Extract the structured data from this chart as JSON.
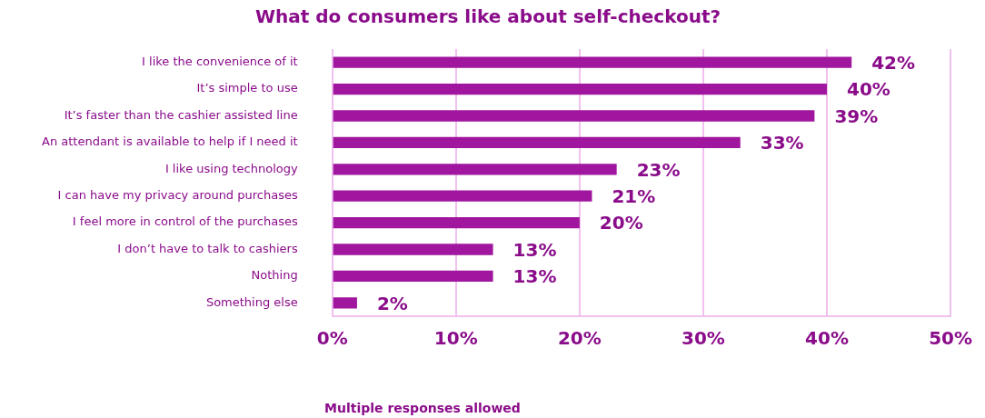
{
  "chart_data": {
    "type": "bar",
    "orientation": "horizontal",
    "title": "What do consumers like about self-checkout?",
    "categories": [
      "I like the convenience of it",
      "It’s simple to use",
      "It’s faster than the cashier assisted line",
      "An attendant is available to help if I need it",
      "I like using technology",
      "I can have my privacy around purchases",
      "I feel more in control of the purchases",
      "I don’t have to talk to cashiers",
      "Nothing",
      "Something else"
    ],
    "values": [
      42,
      40,
      39,
      33,
      23,
      21,
      20,
      13,
      13,
      2
    ],
    "value_labels": [
      "42%",
      "40%",
      "39%",
      "33%",
      "23%",
      "21%",
      "20%",
      "13%",
      "13%",
      "2%"
    ],
    "color": "#a0169e",
    "xlim": [
      0,
      50
    ],
    "xticks": [
      {
        "value": 0,
        "label": "0%"
      },
      {
        "value": 10,
        "label": "10%"
      },
      {
        "value": 20,
        "label": "20%"
      },
      {
        "value": 30,
        "label": "30%"
      },
      {
        "value": 40,
        "label": "40%"
      },
      {
        "value": 50,
        "label": "50%"
      }
    ],
    "grid": "x",
    "legend": false,
    "annotations": [
      "Multiple responses allowed"
    ]
  }
}
